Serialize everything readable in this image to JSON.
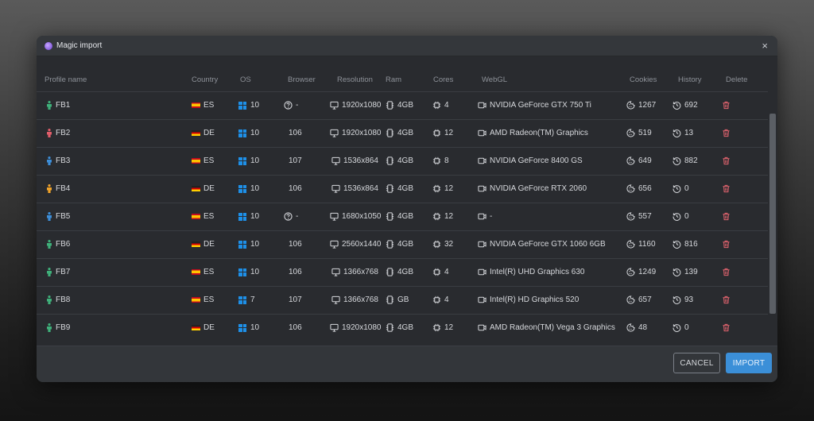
{
  "dialog": {
    "title": "Magic import",
    "close_glyph": "×",
    "cancel_label": "CANCEL",
    "import_label": "IMPORT"
  },
  "columns": {
    "profile": "Profile name",
    "country": "Country",
    "os": "OS",
    "browser": "Browser",
    "resolution": "Resolution",
    "ram": "Ram",
    "cores": "Cores",
    "webgl": "WebGL",
    "cookies": "Cookies",
    "history": "History",
    "delete": "Delete"
  },
  "colors": {
    "person_green": "#3fb07a",
    "person_red": "#e05d6a",
    "person_blue": "#3d8ed8",
    "person_orange": "#f0a32a",
    "delete_red": "#e2646f",
    "accent_blue": "#3b8fd8"
  },
  "rows": [
    {
      "name": "FB1",
      "person": "green",
      "flag": "es",
      "country": "ES",
      "os": "10",
      "browser": "-",
      "browser_unknown": true,
      "resolution": "1920x1080",
      "ram": "4GB",
      "cores": "4",
      "webgl": "NVIDIA GeForce GTX 750 Ti",
      "cookies": "1267",
      "history": "692"
    },
    {
      "name": "FB2",
      "person": "red",
      "flag": "de",
      "country": "DE",
      "os": "10",
      "browser": "106",
      "browser_unknown": false,
      "resolution": "1920x1080",
      "ram": "4GB",
      "cores": "12",
      "webgl": "AMD Radeon(TM) Graphics",
      "cookies": "519",
      "history": "13"
    },
    {
      "name": "FB3",
      "person": "blue",
      "flag": "es",
      "country": "ES",
      "os": "10",
      "browser": "107",
      "browser_unknown": false,
      "resolution": "1536x864",
      "ram": "4GB",
      "cores": "8",
      "webgl": "NVIDIA GeForce 8400 GS",
      "cookies": "649",
      "history": "882"
    },
    {
      "name": "FB4",
      "person": "orange",
      "flag": "de",
      "country": "DE",
      "os": "10",
      "browser": "106",
      "browser_unknown": false,
      "resolution": "1536x864",
      "ram": "4GB",
      "cores": "12",
      "webgl": "NVIDIA GeForce RTX 2060",
      "cookies": "656",
      "history": "0"
    },
    {
      "name": "FB5",
      "person": "blue",
      "flag": "es",
      "country": "ES",
      "os": "10",
      "browser": "-",
      "browser_unknown": true,
      "resolution": "1680x1050",
      "ram": "4GB",
      "cores": "12",
      "webgl": "-",
      "cookies": "557",
      "history": "0"
    },
    {
      "name": "FB6",
      "person": "green",
      "flag": "de",
      "country": "DE",
      "os": "10",
      "browser": "106",
      "browser_unknown": false,
      "resolution": "2560x1440",
      "ram": "4GB",
      "cores": "32",
      "webgl": "NVIDIA GeForce GTX 1060 6GB",
      "cookies": "1160",
      "history": "816"
    },
    {
      "name": "FB7",
      "person": "green",
      "flag": "es",
      "country": "ES",
      "os": "10",
      "browser": "106",
      "browser_unknown": false,
      "resolution": "1366x768",
      "ram": "4GB",
      "cores": "4",
      "webgl": "Intel(R) UHD Graphics 630",
      "cookies": "1249",
      "history": "139"
    },
    {
      "name": "FB8",
      "person": "green",
      "flag": "es",
      "country": "ES",
      "os": "7",
      "browser": "107",
      "browser_unknown": false,
      "resolution": "1366x768",
      "ram": "GB",
      "cores": "4",
      "webgl": "Intel(R) HD Graphics 520",
      "cookies": "657",
      "history": "93"
    },
    {
      "name": "FB9",
      "person": "green",
      "flag": "de",
      "country": "DE",
      "os": "10",
      "browser": "106",
      "browser_unknown": false,
      "resolution": "1920x1080",
      "ram": "4GB",
      "cores": "12",
      "webgl": "AMD Radeon(TM) Vega 3 Graphics",
      "cookies": "48",
      "history": "0"
    }
  ]
}
